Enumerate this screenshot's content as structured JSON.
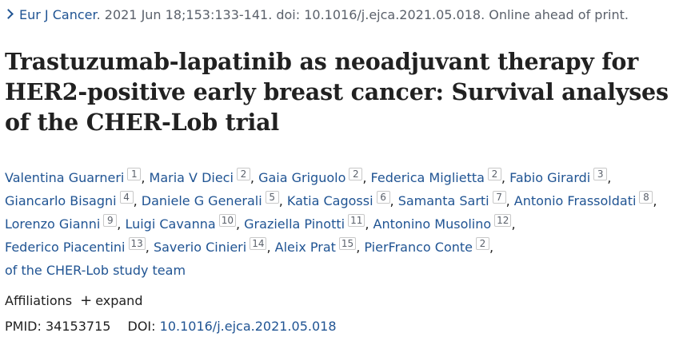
{
  "citation": {
    "journal": "Eur J Cancer",
    "details": ". 2021 Jun 18;153:133-141. doi: 10.1016/j.ejca.2021.05.018. Online ahead of print."
  },
  "title_lines": [
    "Trastuzumab-lapatinib as neoadjuvant therapy for",
    "HER2-positive early breast cancer: Survival analyses",
    "of the CHER-Lob trial"
  ],
  "author_lines": [
    [
      {
        "name": "Valentina Guarneri",
        "aff": "1"
      },
      {
        "name": "Maria V Dieci",
        "aff": "2"
      },
      {
        "name": "Gaia Griguolo",
        "aff": "2"
      },
      {
        "name": "Federica Miglietta",
        "aff": "2"
      },
      {
        "name": "Fabio Girardi",
        "aff": "3"
      }
    ],
    [
      {
        "name": "Giancarlo Bisagni",
        "aff": "4"
      },
      {
        "name": "Daniele G Generali",
        "aff": "5"
      },
      {
        "name": "Katia Cagossi",
        "aff": "6"
      },
      {
        "name": "Samanta Sarti",
        "aff": "7"
      },
      {
        "name": "Antonio Frassoldati",
        "aff": "8"
      }
    ],
    [
      {
        "name": "Lorenzo Gianni",
        "aff": "9"
      },
      {
        "name": "Luigi Cavanna",
        "aff": "10"
      },
      {
        "name": "Graziella Pinotti",
        "aff": "11"
      },
      {
        "name": "Antonino Musolino",
        "aff": "12"
      }
    ],
    [
      {
        "name": "Federico Piacentini",
        "aff": "13"
      },
      {
        "name": "Saverio Cinieri",
        "aff": "14"
      },
      {
        "name": "Aleix Prat",
        "aff": "15"
      },
      {
        "name": "PierFranco Conte",
        "aff": "2"
      }
    ]
  ],
  "study_group": "of the CHER-Lob study team",
  "affiliations": {
    "label": "Affiliations",
    "expand_icon": "+",
    "expand_label": "expand"
  },
  "ids": {
    "pmid_label": "PMID:",
    "pmid": "34153715",
    "doi_label": "DOI:",
    "doi": "10.1016/j.ejca.2021.05.018"
  },
  "colors": {
    "link": "#205493",
    "text": "#212121",
    "muted": "#5b616b"
  }
}
